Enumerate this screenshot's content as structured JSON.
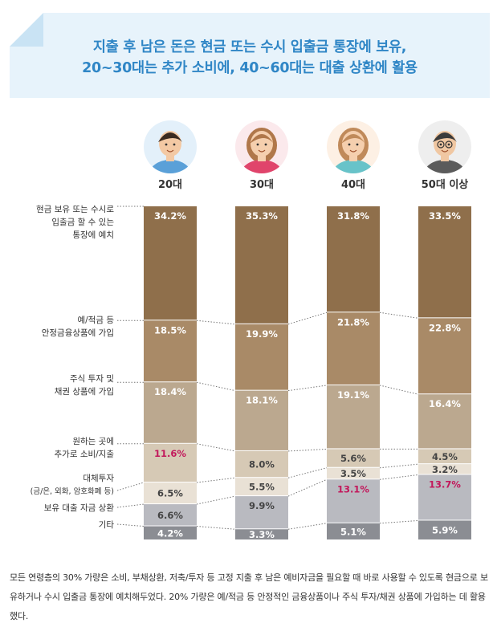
{
  "banner": {
    "line1": "지출 후 남은 돈은 현금 또는 수시 입출금 통장에 보유,",
    "line2": "20~30대는 추가 소비에, 40~60대는 대출 상환에 활용"
  },
  "chart_data": {
    "type": "bar",
    "stacked": true,
    "categories": [
      "20대",
      "30대",
      "40대",
      "50대 이상"
    ],
    "series": [
      {
        "name": "현금 보유 또는 수시로 입출금 할 수 있는 통장에 예치",
        "label_lines": [
          "현금 보유 또는 수시로",
          "입출금 할 수 있는",
          "통장에 예치"
        ],
        "values": [
          34.2,
          35.3,
          31.8,
          33.5
        ],
        "color": "#8f6f4b",
        "labels": [
          "34.2%",
          "35.3%",
          "31.8%",
          "33.5%"
        ]
      },
      {
        "name": "예/적금 등 안정금융상품에 가입",
        "label_lines": [
          "예/적금 등",
          "안정금융상품에 가입"
        ],
        "values": [
          18.5,
          19.9,
          21.8,
          22.8
        ],
        "color": "#a98a67",
        "labels": [
          "18.5%",
          "19.9%",
          "21.8%",
          "22.8%"
        ]
      },
      {
        "name": "주식 투자 및 채권 상품에 가입",
        "label_lines": [
          "주식 투자 및",
          "채권 상품에 가입"
        ],
        "values": [
          18.4,
          18.1,
          19.1,
          16.4
        ],
        "color": "#bba88f",
        "labels": [
          "18.4%",
          "18.1%",
          "19.1%",
          "16.4%"
        ]
      },
      {
        "name": "원하는 곳에 추가로 소비/지출",
        "label_lines": [
          "원하는 곳에",
          "추가로 소비/지출"
        ],
        "values": [
          11.6,
          8.0,
          5.6,
          4.5
        ],
        "color": "#d6c9b5",
        "labels": [
          "11.6%",
          "8.0%",
          "5.6%",
          "4.5%"
        ]
      },
      {
        "name": "대체투자 (금/은, 외화, 암호화폐 등)",
        "label_lines": [
          "대체투자",
          "(금/은, 외화, 암호화폐 등)"
        ],
        "values": [
          6.5,
          5.5,
          3.5,
          3.2
        ],
        "color": "#e9e1d5",
        "labels": [
          "6.5%",
          "5.5%",
          "3.5%",
          "3.2%"
        ]
      },
      {
        "name": "보유 대출 자금 상환",
        "label_lines": [
          "보유 대출 자금 상환"
        ],
        "values": [
          6.6,
          9.9,
          13.1,
          13.7
        ],
        "color": "#b9bac0",
        "labels": [
          "6.6%",
          "9.9%",
          "13.1%",
          "13.7%"
        ]
      },
      {
        "name": "기타",
        "label_lines": [
          "기타"
        ],
        "values": [
          4.2,
          3.3,
          5.1,
          5.9
        ],
        "color": "#8b8d93",
        "labels": [
          "4.2%",
          "3.3%",
          "5.1%",
          "5.9%"
        ]
      }
    ],
    "highlights": [
      {
        "series": 3,
        "category": 0
      },
      {
        "series": 5,
        "category": 2
      },
      {
        "series": 5,
        "category": 3
      }
    ],
    "highlight_color": "#c2185b",
    "ylim": [
      0,
      100
    ],
    "grid": false
  },
  "description": "모든 연령층의 30% 가량은 소비, 부채상환, 저축/투자 등 고정 지출 후 남은 예비자금을 필요할 때 바로 사용할 수 있도록 현금으로 보유하거나 수시 입출금 통장에 예치해두었다. 20% 가량은 예/적금 등 안정적인 금융상품이나 주식 투자/채권 상품에 가입하는 데 활용했다."
}
